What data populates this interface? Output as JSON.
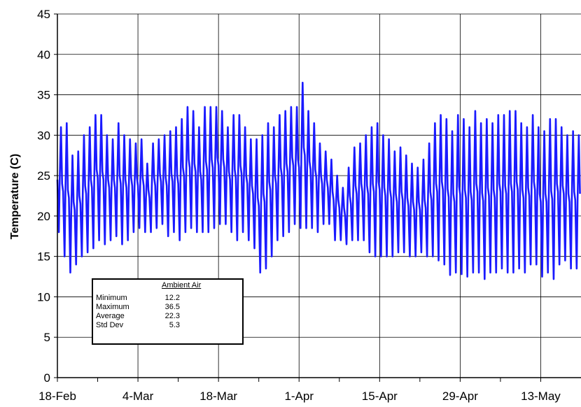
{
  "chart_data": {
    "type": "line",
    "title": "",
    "xlabel": "",
    "ylabel": "Temperature (C)",
    "ylim": [
      0,
      45
    ],
    "yticks": [
      "0",
      "5",
      "10",
      "15",
      "20",
      "25",
      "30",
      "35",
      "40",
      "45"
    ],
    "xlim": [
      "2003-02-18",
      "2003-05-20"
    ],
    "xtick_labels": [
      "18-Feb",
      "4-Mar",
      "18-Mar",
      "1-Apr",
      "15-Apr",
      "29-Apr",
      "13-May"
    ],
    "grid": true,
    "line_color": "#1a1aff",
    "series": [
      {
        "name": "",
        "daily_min": [
          18.0,
          15.0,
          13.0,
          14.0,
          15.0,
          15.5,
          16.0,
          17.0,
          16.5,
          17.0,
          17.5,
          16.5,
          17.0,
          18.0,
          18.5,
          18.0,
          18.0,
          18.5,
          19.0,
          17.5,
          18.0,
          17.0,
          18.0,
          18.5,
          18.0,
          18.0,
          18.0,
          18.5,
          19.0,
          19.0,
          18.0,
          17.0,
          18.0,
          17.0,
          16.0,
          13.0,
          13.5,
          15.0,
          17.0,
          17.5,
          18.0,
          19.0,
          18.5,
          18.5,
          18.5,
          18.0,
          19.0,
          19.0,
          17.0,
          17.0,
          16.5,
          17.0,
          17.0,
          17.0,
          15.5,
          15.0,
          15.0,
          15.0,
          15.0,
          15.5,
          15.5,
          15.0,
          15.0,
          15.5,
          15.0,
          15.0,
          14.5,
          14.0,
          12.7,
          13.0,
          12.8,
          12.5,
          13.0,
          13.0,
          12.2,
          13.0,
          13.0,
          13.5,
          13.0,
          13.0,
          13.5,
          13.0,
          14.0,
          14.0,
          12.5,
          13.0,
          12.2,
          14.0,
          14.5,
          13.5,
          13.5
        ],
        "daily_max": [
          31.0,
          31.5,
          27.5,
          28.0,
          30.0,
          31.0,
          32.5,
          32.5,
          30.0,
          29.5,
          31.5,
          30.0,
          29.5,
          29.0,
          29.5,
          26.5,
          29.0,
          29.5,
          30.0,
          30.5,
          31.0,
          32.0,
          33.5,
          33.0,
          31.0,
          33.5,
          33.5,
          33.5,
          33.0,
          31.0,
          32.5,
          32.5,
          31.0,
          29.5,
          29.5,
          30.0,
          31.5,
          31.0,
          32.5,
          33.0,
          33.5,
          33.5,
          36.5,
          33.0,
          31.5,
          29.0,
          28.0,
          27.0,
          25.0,
          23.5,
          26.0,
          28.5,
          29.0,
          30.0,
          31.0,
          31.5,
          30.0,
          29.5,
          28.0,
          28.5,
          27.5,
          26.5,
          26.0,
          27.0,
          29.0,
          31.5,
          32.5,
          32.0,
          30.5,
          32.5,
          32.0,
          31.0,
          33.0,
          31.5,
          32.0,
          31.5,
          32.5,
          32.5,
          33.0,
          33.0,
          31.5,
          31.0,
          32.5,
          31.0,
          30.5,
          32.0,
          32.0,
          31.0,
          30.0,
          30.5,
          30.0
        ]
      }
    ]
  },
  "legend_box": {
    "header": "Ambient Air",
    "rows": [
      {
        "label": "Minimum",
        "value": "12.2"
      },
      {
        "label": "Maximum",
        "value": "36.5"
      },
      {
        "label": "Average",
        "value": "22.3"
      },
      {
        "label": "Std Dev",
        "value": "5.3"
      }
    ]
  }
}
